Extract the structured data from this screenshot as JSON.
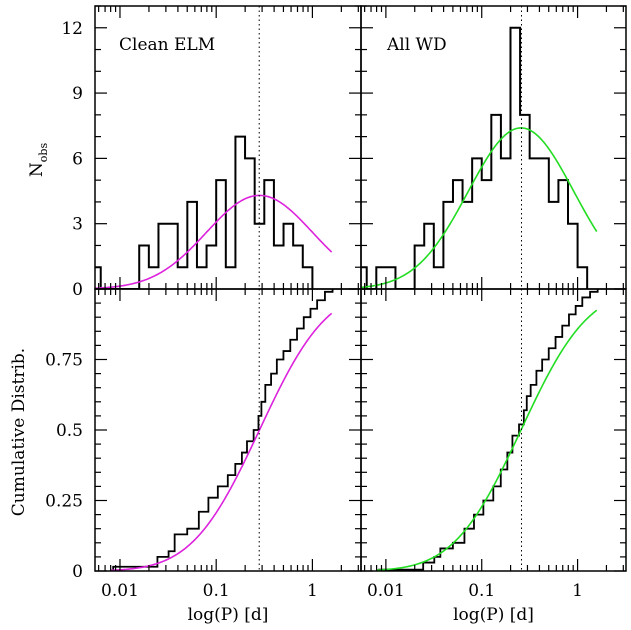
{
  "chart_data": {
    "type": "histogram+cdf",
    "xlabel": "log(P) [d]",
    "ylabel_top": "N",
    "ylabel_top_sub": "obs",
    "ylabel_bottom": "Cumulative Distrib.",
    "x_scale": "log",
    "xlim_days": [
      0.0055,
      3.2
    ],
    "x_ticks": [
      {
        "v": 0.01,
        "label": "0.01"
      },
      {
        "v": 0.1,
        "label": "0.1"
      },
      {
        "v": 1,
        "label": "1"
      }
    ],
    "top_ylim": [
      0,
      13
    ],
    "top_ticks": [
      {
        "v": 0,
        "label": "0"
      },
      {
        "v": 3,
        "label": "3"
      },
      {
        "v": 6,
        "label": "6"
      },
      {
        "v": 9,
        "label": "9"
      },
      {
        "v": 12,
        "label": "12"
      }
    ],
    "bottom_ylim": [
      0,
      1
    ],
    "bottom_ticks": [
      {
        "v": 0,
        "label": "0"
      },
      {
        "v": 0.25,
        "label": "0.25"
      },
      {
        "v": 0.5,
        "label": "0.5"
      },
      {
        "v": 0.75,
        "label": "0.75"
      }
    ],
    "bin_width_dex": 0.1,
    "panels": [
      {
        "title": "Clean ELM",
        "color": "#dd22dd",
        "median_days": 0.28,
        "hist_log_start": -2.3,
        "hist_counts": [
          1,
          0,
          0,
          0,
          0,
          2,
          1,
          3,
          3,
          1,
          4,
          1,
          2,
          5,
          1,
          7,
          6,
          3,
          5,
          2,
          3,
          2,
          1
        ],
        "gauss_fit": {
          "amplitude": 4.3,
          "mu_log": -0.55,
          "sigma_log": 0.55,
          "x_range_log": [
            -2.3,
            0.2
          ]
        },
        "cdf_fit": {
          "mu_log": -0.55,
          "sigma_log": 0.55,
          "x_range_log": [
            -2.1,
            0.2
          ]
        },
        "ecdf_points": [
          [
            0.0085,
            0.015
          ],
          [
            0.0245,
            0.05
          ],
          [
            0.032,
            0.07
          ],
          [
            0.037,
            0.13
          ],
          [
            0.05,
            0.15
          ],
          [
            0.066,
            0.21
          ],
          [
            0.083,
            0.26
          ],
          [
            0.104,
            0.3
          ],
          [
            0.132,
            0.34
          ],
          [
            0.158,
            0.38
          ],
          [
            0.185,
            0.42
          ],
          [
            0.209,
            0.46
          ],
          [
            0.245,
            0.5
          ],
          [
            0.275,
            0.55
          ],
          [
            0.295,
            0.6
          ],
          [
            0.324,
            0.66
          ],
          [
            0.372,
            0.7
          ],
          [
            0.427,
            0.75
          ],
          [
            0.5,
            0.78
          ],
          [
            0.589,
            0.82
          ],
          [
            0.692,
            0.86
          ],
          [
            0.813,
            0.9
          ],
          [
            0.955,
            0.93
          ],
          [
            1.12,
            0.96
          ],
          [
            1.35,
            0.99
          ],
          [
            1.62,
            1.0
          ]
        ]
      },
      {
        "title": "All WD",
        "color": "#22dd22",
        "median_days": 0.26,
        "hist_log_start": -2.3,
        "hist_counts": [
          1,
          0,
          1,
          1,
          0,
          0,
          2,
          3,
          1,
          4,
          5,
          4,
          6,
          5,
          8,
          6,
          12,
          8,
          6,
          6,
          4,
          5,
          3,
          1
        ],
        "gauss_fit": {
          "amplitude": 7.4,
          "mu_log": -0.59,
          "sigma_log": 0.55,
          "x_range_log": [
            -2.3,
            0.2
          ]
        },
        "cdf_fit": {
          "mu_log": -0.59,
          "sigma_log": 0.55,
          "x_range_log": [
            -2.1,
            0.2
          ]
        },
        "ecdf_points": [
          [
            0.0085,
            0.005
          ],
          [
            0.0245,
            0.03
          ],
          [
            0.032,
            0.05
          ],
          [
            0.037,
            0.08
          ],
          [
            0.05,
            0.1
          ],
          [
            0.066,
            0.15
          ],
          [
            0.083,
            0.2
          ],
          [
            0.104,
            0.25
          ],
          [
            0.132,
            0.3
          ],
          [
            0.158,
            0.36
          ],
          [
            0.185,
            0.42
          ],
          [
            0.209,
            0.48
          ],
          [
            0.245,
            0.52
          ],
          [
            0.275,
            0.57
          ],
          [
            0.295,
            0.62
          ],
          [
            0.324,
            0.66
          ],
          [
            0.372,
            0.71
          ],
          [
            0.427,
            0.75
          ],
          [
            0.5,
            0.79
          ],
          [
            0.589,
            0.83
          ],
          [
            0.692,
            0.87
          ],
          [
            0.813,
            0.91
          ],
          [
            0.955,
            0.94
          ],
          [
            1.12,
            0.97
          ],
          [
            1.35,
            0.99
          ],
          [
            1.62,
            1.0
          ]
        ]
      }
    ]
  }
}
